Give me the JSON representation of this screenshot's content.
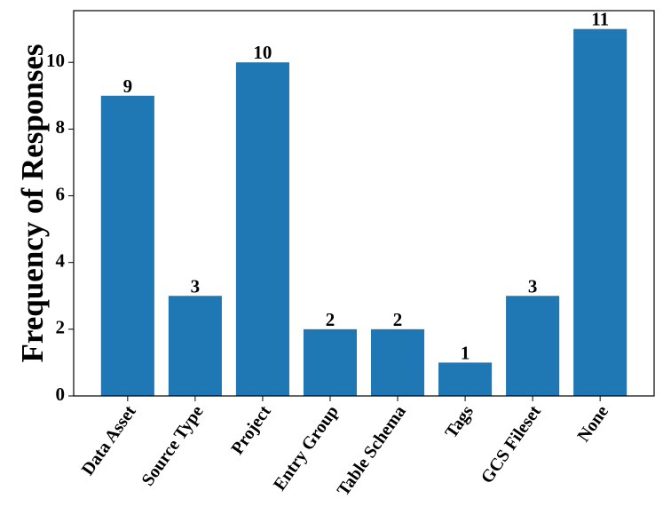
{
  "chart_data": {
    "type": "bar",
    "y_label": "Frequency of Responses",
    "categories": [
      "Data Asset",
      "Source Type",
      "Project",
      "Entry Group",
      "Table Schema",
      "Tags",
      "GCS Fileset",
      "None"
    ],
    "values": [
      9,
      3,
      10,
      2,
      2,
      1,
      3,
      11
    ],
    "color": "#1f77b4",
    "ylim": [
      0,
      11.55
    ],
    "yticks": [
      0,
      2,
      4,
      6,
      8,
      10
    ],
    "grid": false
  }
}
